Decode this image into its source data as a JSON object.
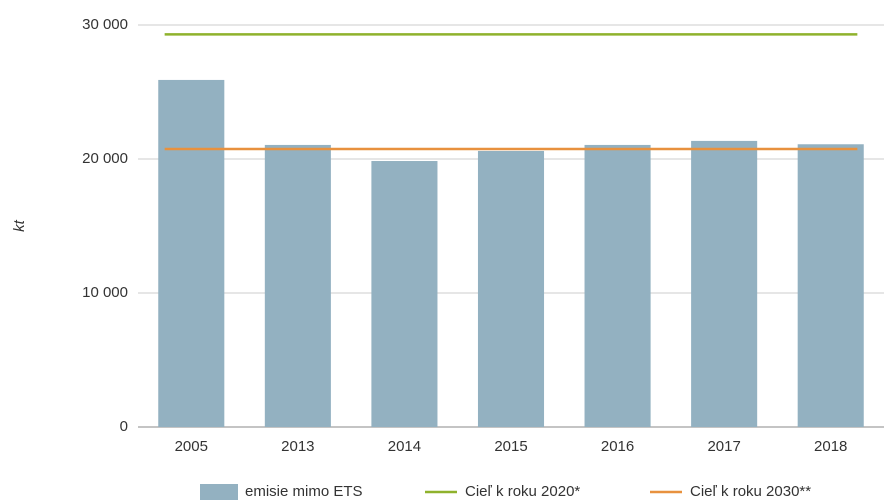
{
  "chart_data": {
    "type": "bar",
    "y_label": "kt",
    "categories": [
      "2005",
      "2013",
      "2014",
      "2015",
      "2016",
      "2017",
      "2018"
    ],
    "series": [
      {
        "name": "emisie mimo ETS",
        "type": "bar",
        "color": "#93b1c1",
        "values": [
          25900,
          21050,
          19850,
          20600,
          21050,
          21350,
          21100
        ]
      },
      {
        "name": "Cieľ k roku 2020*",
        "type": "line",
        "color": "#8fb22c",
        "values": [
          29300,
          29300,
          29300,
          29300,
          29300,
          29300,
          29300
        ]
      },
      {
        "name": "Cieľ k roku 2030**",
        "type": "line",
        "color": "#e8913e",
        "values": [
          20750,
          20750,
          20750,
          20750,
          20750,
          20750,
          20750
        ]
      }
    ],
    "ylim": [
      0,
      30000
    ],
    "yticks": [
      0,
      {
        "value": 10000,
        "label": "10 000"
      },
      {
        "value": 20000,
        "label": "20 000"
      },
      {
        "value": 30000,
        "label": "30 000"
      }
    ],
    "grid": true,
    "legend": "bottom"
  }
}
